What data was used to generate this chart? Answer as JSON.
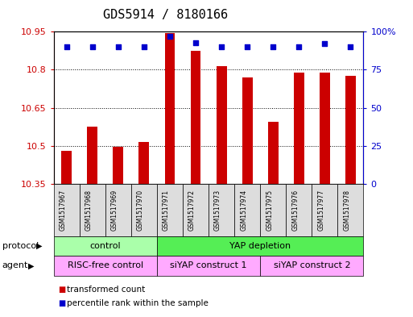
{
  "title": "GDS5914 / 8180166",
  "samples": [
    "GSM1517967",
    "GSM1517968",
    "GSM1517969",
    "GSM1517970",
    "GSM1517971",
    "GSM1517972",
    "GSM1517973",
    "GSM1517974",
    "GSM1517975",
    "GSM1517976",
    "GSM1517977",
    "GSM1517978"
  ],
  "bar_values": [
    10.48,
    10.575,
    10.495,
    10.515,
    10.945,
    10.875,
    10.815,
    10.77,
    10.595,
    10.79,
    10.79,
    10.775
  ],
  "bar_base": 10.35,
  "percentile_values": [
    90,
    90,
    90,
    90,
    97,
    93,
    90,
    90,
    90,
    90,
    92,
    90
  ],
  "ylim_left": [
    10.35,
    10.95
  ],
  "ylim_right": [
    0,
    100
  ],
  "yticks_left": [
    10.35,
    10.5,
    10.65,
    10.8,
    10.95
  ],
  "yticks_right": [
    0,
    25,
    50,
    75,
    100
  ],
  "bar_color": "#cc0000",
  "dot_color": "#0000cc",
  "protocol_groups": [
    {
      "label": "control",
      "start": 0,
      "end": 3,
      "color": "#aaffaa"
    },
    {
      "label": "YAP depletion",
      "start": 4,
      "end": 11,
      "color": "#55ee55"
    }
  ],
  "agent_groups": [
    {
      "label": "RISC-free control",
      "start": 0,
      "end": 3,
      "color": "#ffaaff"
    },
    {
      "label": "siYAP construct 1",
      "start": 4,
      "end": 7,
      "color": "#ffaaff"
    },
    {
      "label": "siYAP construct 2",
      "start": 8,
      "end": 11,
      "color": "#ffaaff"
    }
  ],
  "protocol_label": "protocol",
  "agent_label": "agent",
  "legend_items": [
    {
      "label": "transformed count",
      "color": "#cc0000"
    },
    {
      "label": "percentile rank within the sample",
      "color": "#0000cc"
    }
  ],
  "background_color": "#ffffff",
  "title_fontsize": 11,
  "tick_fontsize": 8,
  "sample_box_color": "#dddddd"
}
